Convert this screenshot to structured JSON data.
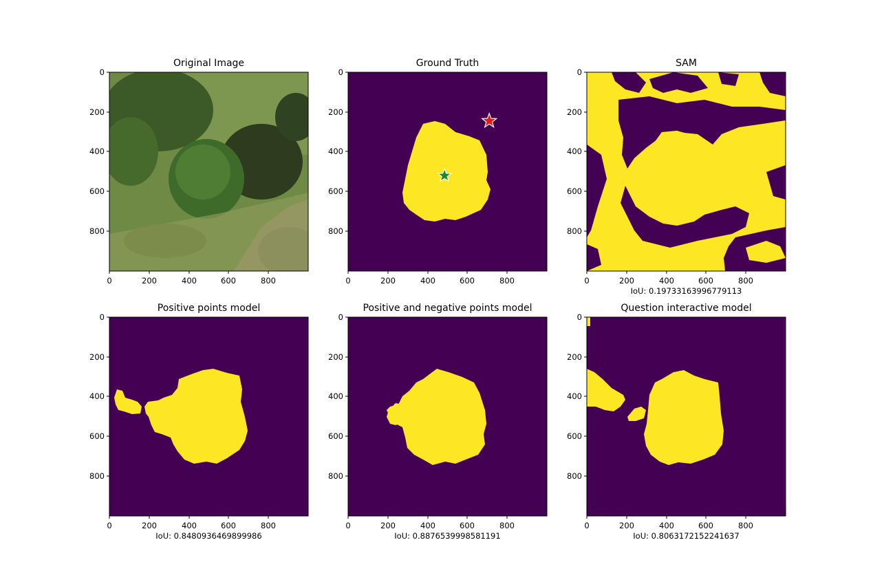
{
  "colors": {
    "background": "#440154",
    "foreground": "#fde725",
    "teal": "#21918c",
    "star_negative": "#e31a1c",
    "star_positive": "#1a8a2a"
  },
  "ticks": {
    "x": [
      "0",
      "200",
      "400",
      "600",
      "800"
    ],
    "y": [
      "0",
      "200",
      "400",
      "600",
      "800"
    ]
  },
  "panels": [
    {
      "title": "Original Image",
      "xlabel": ""
    },
    {
      "title": "Ground Truth",
      "xlabel": ""
    },
    {
      "title": "SAM",
      "xlabel": "IoU: 0.19733163996779113"
    },
    {
      "title": "Positive points model",
      "xlabel": "IoU: 0.8480936469899986"
    },
    {
      "title": "Positive and negative points model",
      "xlabel": "IoU: 0.8876539998581191"
    },
    {
      "title": "Question interactive model",
      "xlabel": "IoU: 0.8063172152241637"
    }
  ],
  "points": {
    "positive": {
      "x": 485,
      "y": 520
    },
    "negative": {
      "x": 710,
      "y": 245
    }
  }
}
